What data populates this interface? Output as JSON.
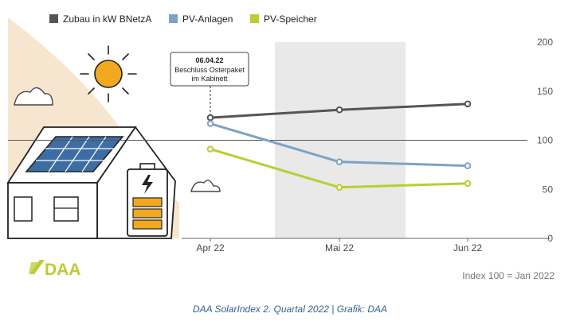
{
  "chart_data": {
    "type": "line",
    "categories": [
      "Apr 22",
      "Mai 22",
      "Jun 22"
    ],
    "series": [
      {
        "name": "Zubau in kW BNetzA",
        "color": "#555555",
        "values": [
          123,
          131,
          137
        ]
      },
      {
        "name": "PV-Anlagen",
        "color": "#7ca3c5",
        "values": [
          117,
          78,
          74
        ]
      },
      {
        "name": "PV-Speicher",
        "color": "#bccc32",
        "values": [
          91,
          52,
          56
        ]
      }
    ],
    "ylim": [
      0,
      200
    ],
    "yticks": [
      "0",
      "50",
      "100",
      "150",
      "200"
    ],
    "reference_line": 100,
    "shaded_category": "Mai 22",
    "annotation": {
      "date": "06.04.22",
      "line1": "Beschluss Osterpaket",
      "line2": "im Kabinett"
    },
    "index_note": "Index 100 = Jan 2022",
    "grid": false,
    "legend_position": "top-left"
  },
  "logo_text": "DAA",
  "caption": "DAA SolarIndex 2. Quartal 2022 | Grafik: DAA",
  "colors": {
    "sun": "#f2a81f",
    "panel": "#3d6ea3",
    "battery": "#f2a81f",
    "sand": "#f7e6cf",
    "shade": "#e9e9e9",
    "logo": "#bccc32"
  }
}
